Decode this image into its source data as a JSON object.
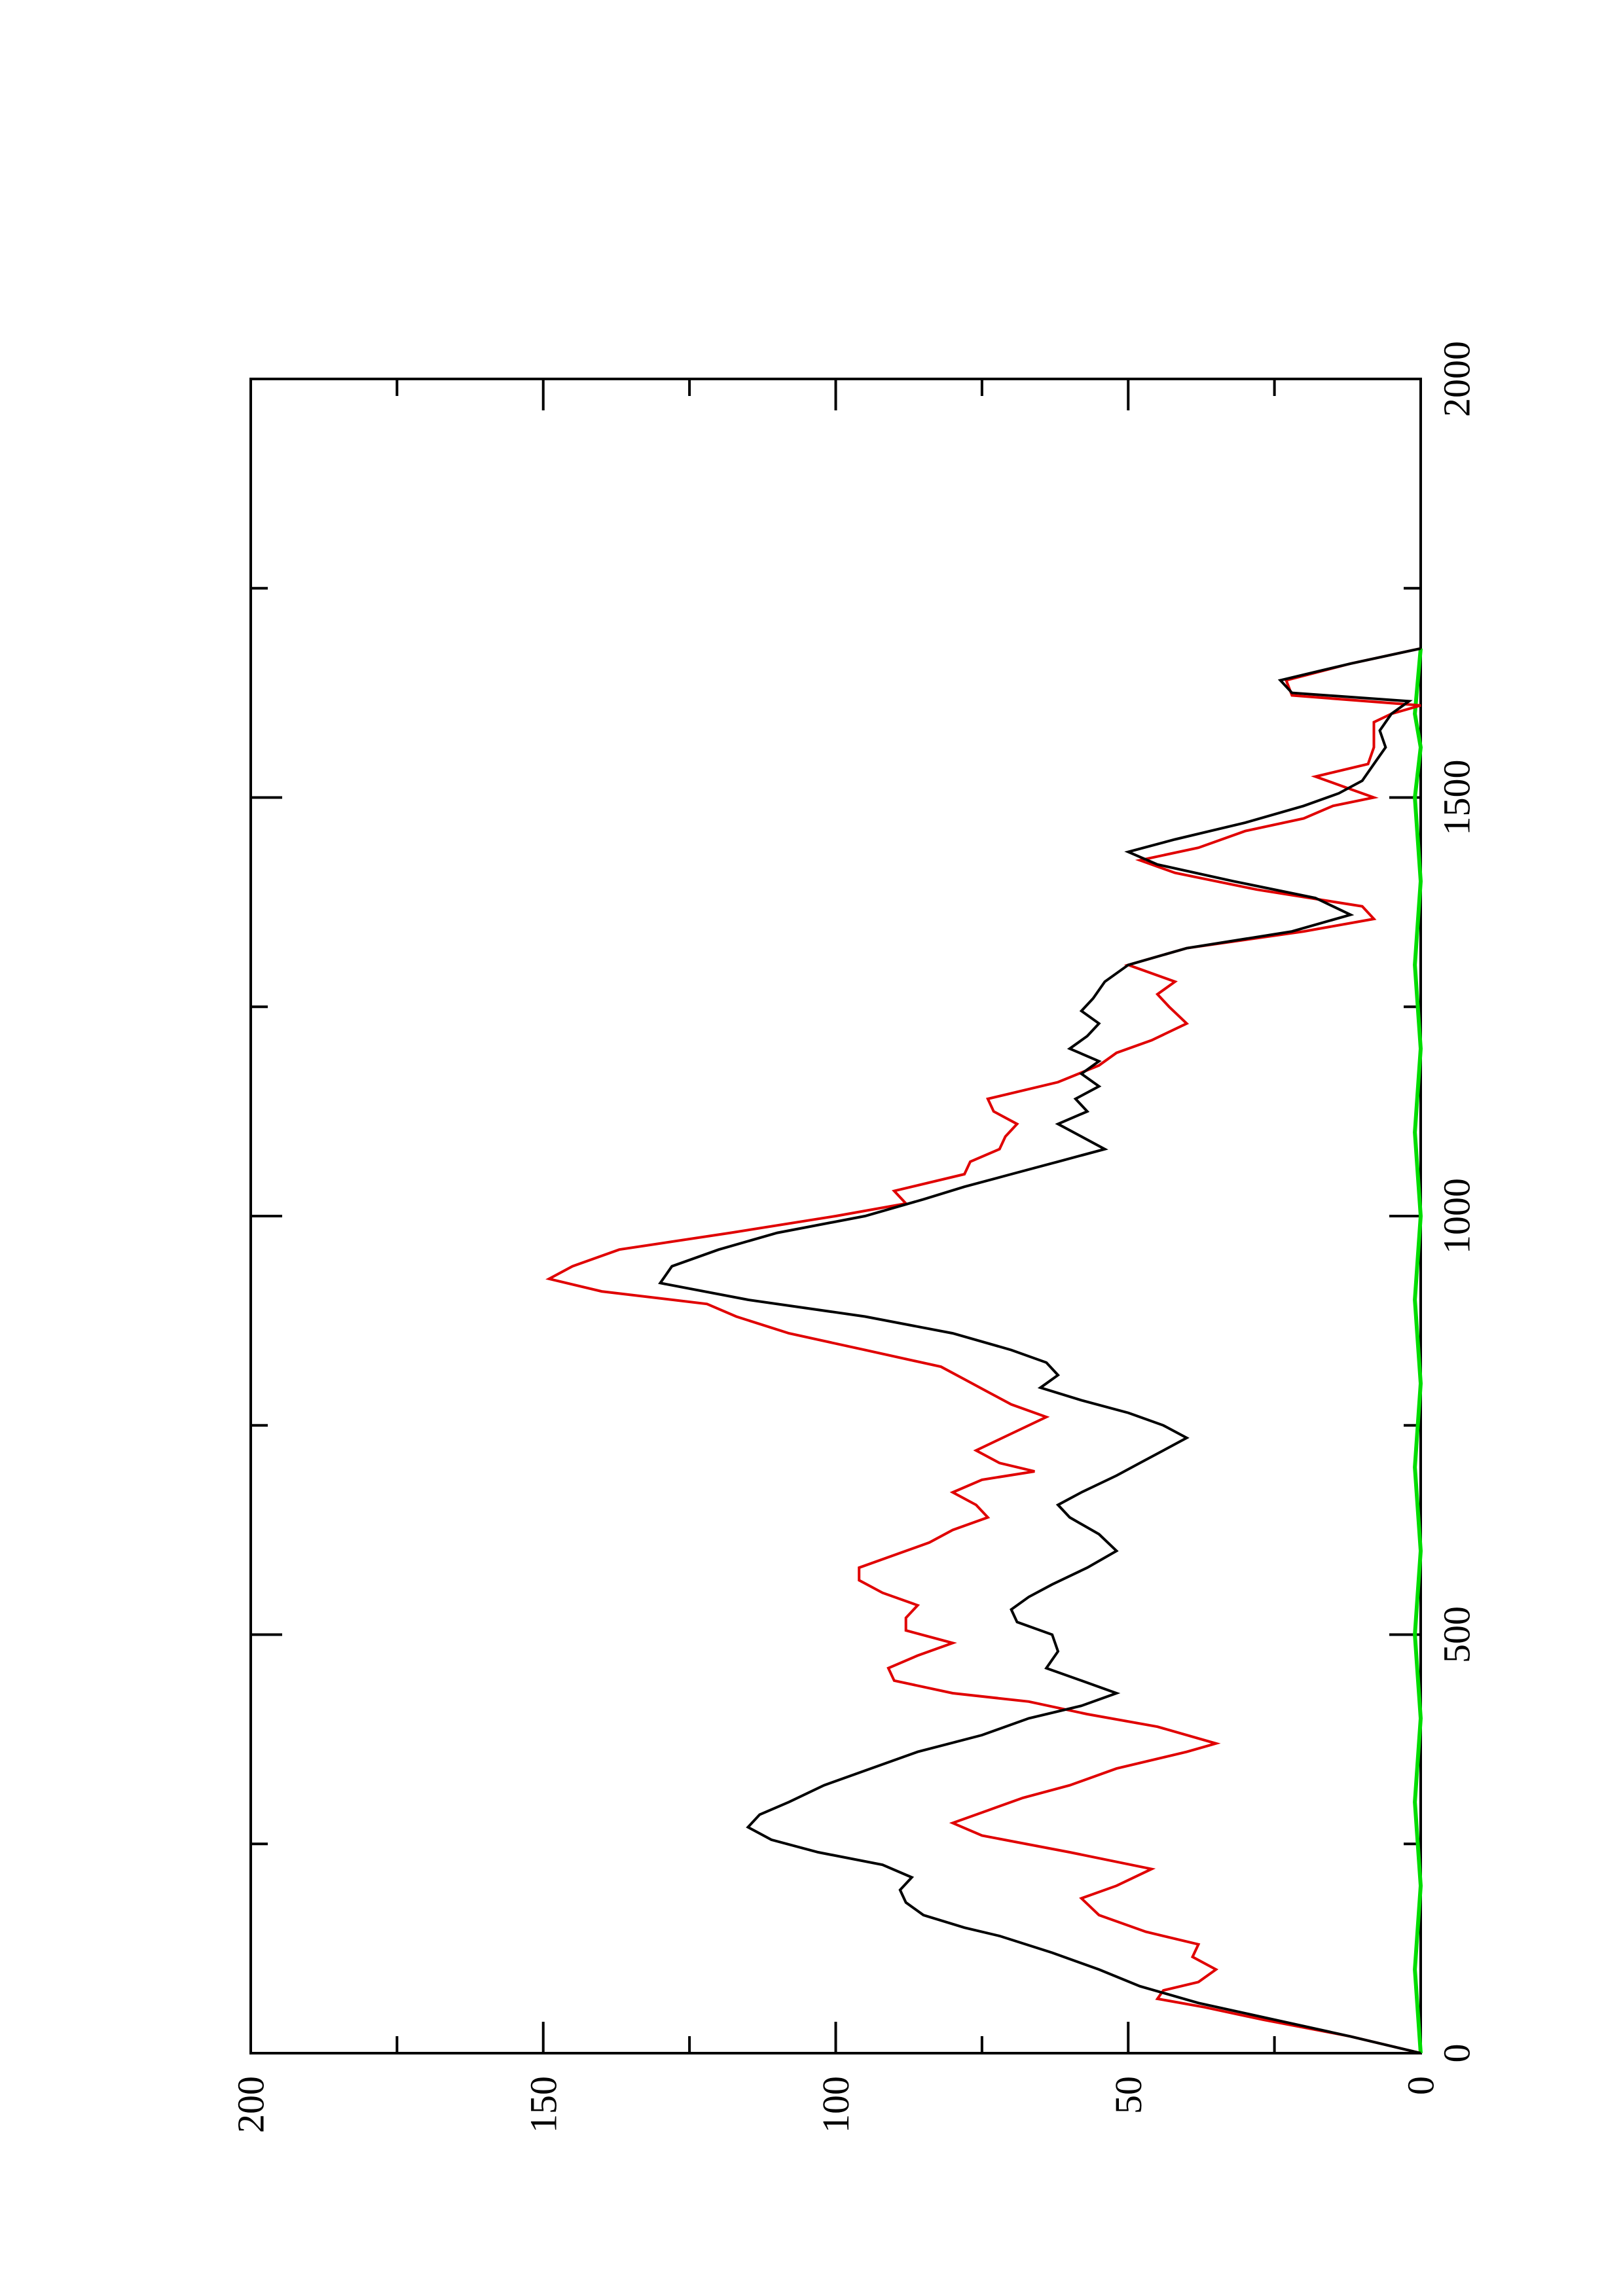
{
  "chart_data": {
    "type": "line",
    "title": "",
    "xlabel": "",
    "ylabel": "",
    "orientation": "rotated-90-ccw",
    "xlim": [
      0,
      2000
    ],
    "ylim": [
      0,
      200
    ],
    "x_ticks": [
      0,
      500,
      1000,
      1500,
      2000
    ],
    "x_tick_labels": [
      "0",
      "500",
      "1000",
      "1500",
      "2000"
    ],
    "x_minor_ticks": [
      250,
      750,
      1250,
      1750
    ],
    "y_ticks": [
      0,
      50,
      100,
      150,
      200
    ],
    "y_tick_labels": [
      "0",
      "50",
      "100",
      "150",
      "200"
    ],
    "y_minor_ticks": [
      25,
      75,
      125,
      175
    ],
    "grid": false,
    "legend": "none",
    "colors": {
      "black_series": "#000000",
      "red_series": "#e00000",
      "green_series": "#00dd00",
      "axes": "#000000"
    },
    "series": [
      {
        "color": "#000000",
        "points": [
          [
            0,
            0
          ],
          [
            20,
            12
          ],
          [
            40,
            25
          ],
          [
            60,
            38
          ],
          [
            80,
            48
          ],
          [
            100,
            55
          ],
          [
            120,
            63
          ],
          [
            140,
            72
          ],
          [
            150,
            78
          ],
          [
            165,
            85
          ],
          [
            180,
            88
          ],
          [
            195,
            89
          ],
          [
            210,
            87
          ],
          [
            225,
            92
          ],
          [
            240,
            103
          ],
          [
            255,
            111
          ],
          [
            270,
            115
          ],
          [
            285,
            113
          ],
          [
            300,
            108
          ],
          [
            320,
            102
          ],
          [
            340,
            94
          ],
          [
            360,
            86
          ],
          [
            380,
            75
          ],
          [
            400,
            67
          ],
          [
            415,
            58
          ],
          [
            430,
            52
          ],
          [
            445,
            58
          ],
          [
            460,
            64
          ],
          [
            480,
            62
          ],
          [
            500,
            63
          ],
          [
            515,
            69
          ],
          [
            530,
            70
          ],
          [
            545,
            67
          ],
          [
            560,
            63
          ],
          [
            580,
            57
          ],
          [
            600,
            52
          ],
          [
            620,
            55
          ],
          [
            640,
            60
          ],
          [
            655,
            62
          ],
          [
            670,
            58
          ],
          [
            690,
            52
          ],
          [
            705,
            48
          ],
          [
            720,
            44
          ],
          [
            735,
            40
          ],
          [
            750,
            44
          ],
          [
            765,
            50
          ],
          [
            780,
            58
          ],
          [
            795,
            65
          ],
          [
            810,
            62
          ],
          [
            825,
            64
          ],
          [
            840,
            70
          ],
          [
            860,
            80
          ],
          [
            880,
            95
          ],
          [
            900,
            115
          ],
          [
            920,
            130
          ],
          [
            940,
            128
          ],
          [
            960,
            120
          ],
          [
            980,
            110
          ],
          [
            1000,
            95
          ],
          [
            1020,
            85
          ],
          [
            1035,
            78
          ],
          [
            1050,
            70
          ],
          [
            1065,
            62
          ],
          [
            1080,
            54
          ],
          [
            1095,
            58
          ],
          [
            1110,
            62
          ],
          [
            1125,
            57
          ],
          [
            1140,
            59
          ],
          [
            1155,
            55
          ],
          [
            1170,
            58
          ],
          [
            1185,
            55
          ],
          [
            1200,
            60
          ],
          [
            1215,
            57
          ],
          [
            1230,
            55
          ],
          [
            1245,
            58
          ],
          [
            1260,
            56
          ],
          [
            1280,
            54
          ],
          [
            1300,
            50
          ],
          [
            1320,
            40
          ],
          [
            1340,
            22
          ],
          [
            1360,
            12
          ],
          [
            1380,
            18
          ],
          [
            1400,
            32
          ],
          [
            1420,
            45
          ],
          [
            1435,
            50
          ],
          [
            1450,
            42
          ],
          [
            1470,
            30
          ],
          [
            1490,
            20
          ],
          [
            1505,
            14
          ],
          [
            1520,
            10
          ],
          [
            1540,
            8
          ],
          [
            1560,
            6
          ],
          [
            1580,
            7
          ],
          [
            1600,
            5
          ],
          [
            1615,
            2
          ],
          [
            1625,
            22
          ],
          [
            1640,
            24
          ],
          [
            1660,
            12
          ],
          [
            1678,
            0
          ]
        ]
      },
      {
        "color": "#e00000",
        "points": [
          [
            0,
            0
          ],
          [
            20,
            12
          ],
          [
            40,
            27
          ],
          [
            55,
            37
          ],
          [
            65,
            45
          ],
          [
            75,
            44
          ],
          [
            85,
            38
          ],
          [
            100,
            35
          ],
          [
            115,
            39
          ],
          [
            130,
            38
          ],
          [
            145,
            47
          ],
          [
            165,
            55
          ],
          [
            185,
            58
          ],
          [
            200,
            52
          ],
          [
            220,
            46
          ],
          [
            240,
            60
          ],
          [
            260,
            75
          ],
          [
            275,
            80
          ],
          [
            290,
            74
          ],
          [
            305,
            68
          ],
          [
            320,
            60
          ],
          [
            340,
            52
          ],
          [
            360,
            40
          ],
          [
            370,
            35
          ],
          [
            390,
            45
          ],
          [
            405,
            57
          ],
          [
            420,
            67
          ],
          [
            430,
            80
          ],
          [
            445,
            90
          ],
          [
            460,
            91
          ],
          [
            475,
            86
          ],
          [
            490,
            80
          ],
          [
            505,
            88
          ],
          [
            520,
            88
          ],
          [
            535,
            86
          ],
          [
            550,
            92
          ],
          [
            565,
            96
          ],
          [
            580,
            96
          ],
          [
            595,
            90
          ],
          [
            610,
            84
          ],
          [
            625,
            80
          ],
          [
            640,
            74
          ],
          [
            655,
            76
          ],
          [
            670,
            80
          ],
          [
            685,
            75
          ],
          [
            695,
            66
          ],
          [
            705,
            72
          ],
          [
            720,
            76
          ],
          [
            740,
            70
          ],
          [
            760,
            64
          ],
          [
            775,
            70
          ],
          [
            790,
            74
          ],
          [
            805,
            78
          ],
          [
            820,
            82
          ],
          [
            840,
            95
          ],
          [
            860,
            108
          ],
          [
            880,
            117
          ],
          [
            895,
            122
          ],
          [
            910,
            140
          ],
          [
            925,
            149
          ],
          [
            940,
            145
          ],
          [
            960,
            137
          ],
          [
            980,
            118
          ],
          [
            1000,
            100
          ],
          [
            1015,
            88
          ],
          [
            1030,
            90
          ],
          [
            1050,
            78
          ],
          [
            1065,
            77
          ],
          [
            1080,
            72
          ],
          [
            1095,
            71
          ],
          [
            1110,
            69
          ],
          [
            1125,
            73
          ],
          [
            1140,
            74
          ],
          [
            1160,
            62
          ],
          [
            1180,
            55
          ],
          [
            1195,
            52
          ],
          [
            1210,
            46
          ],
          [
            1230,
            40
          ],
          [
            1250,
            43
          ],
          [
            1265,
            45
          ],
          [
            1280,
            42
          ],
          [
            1300,
            50
          ],
          [
            1320,
            40
          ],
          [
            1340,
            20
          ],
          [
            1355,
            8
          ],
          [
            1370,
            10
          ],
          [
            1390,
            28
          ],
          [
            1410,
            42
          ],
          [
            1425,
            48
          ],
          [
            1440,
            38
          ],
          [
            1460,
            30
          ],
          [
            1475,
            20
          ],
          [
            1490,
            15
          ],
          [
            1500,
            8
          ],
          [
            1510,
            12
          ],
          [
            1525,
            18
          ],
          [
            1540,
            9
          ],
          [
            1560,
            8
          ],
          [
            1575,
            8
          ],
          [
            1590,
            8
          ],
          [
            1600,
            5
          ],
          [
            1610,
            0
          ],
          [
            1622,
            22
          ],
          [
            1640,
            23
          ],
          [
            1660,
            12
          ],
          [
            1678,
            0
          ]
        ]
      },
      {
        "color": "#00dd00",
        "points": [
          [
            0,
            0
          ],
          [
            100,
            1
          ],
          [
            200,
            0
          ],
          [
            300,
            1
          ],
          [
            400,
            0
          ],
          [
            500,
            1
          ],
          [
            600,
            0
          ],
          [
            700,
            1
          ],
          [
            800,
            0
          ],
          [
            900,
            1
          ],
          [
            1000,
            0
          ],
          [
            1100,
            1
          ],
          [
            1200,
            0
          ],
          [
            1300,
            1
          ],
          [
            1400,
            0
          ],
          [
            1500,
            1
          ],
          [
            1560,
            0
          ],
          [
            1600,
            1
          ],
          [
            1678,
            0
          ]
        ]
      }
    ]
  }
}
